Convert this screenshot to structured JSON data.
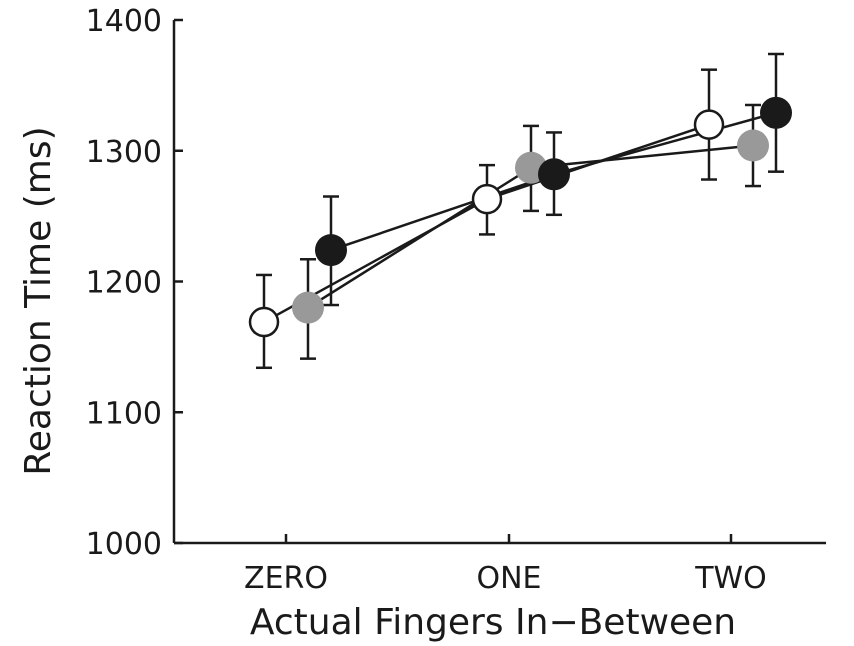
{
  "chart_data": {
    "type": "scatter",
    "title": "",
    "xlabel": "Actual Fingers In−Between",
    "ylabel": "Reaction Time (ms)",
    "categories": [
      "ZERO",
      "ONE",
      "TWO"
    ],
    "ylim": [
      1000,
      1400
    ],
    "yticks": [
      "1000",
      "1100",
      "1200",
      "1300",
      "1400"
    ],
    "grid": false,
    "legend": "none",
    "series": [
      {
        "marker": "open-circle",
        "color": "#ffffff",
        "values": [
          1169,
          1263,
          1320
        ],
        "err_low": [
          1134,
          1236,
          1278
        ],
        "err_high": [
          1205,
          1289,
          1362
        ]
      },
      {
        "marker": "gray-circle",
        "color": "#999999",
        "values": [
          1180,
          1287,
          1304
        ],
        "err_low": [
          1141,
          1254,
          1273
        ],
        "err_high": [
          1217,
          1319,
          1335
        ]
      },
      {
        "marker": "black-circle",
        "color": "#1a1a1a",
        "values": [
          1224,
          1282,
          1329
        ],
        "err_low": [
          1182,
          1251,
          1284
        ],
        "err_high": [
          1265,
          1314,
          1374
        ]
      }
    ]
  }
}
